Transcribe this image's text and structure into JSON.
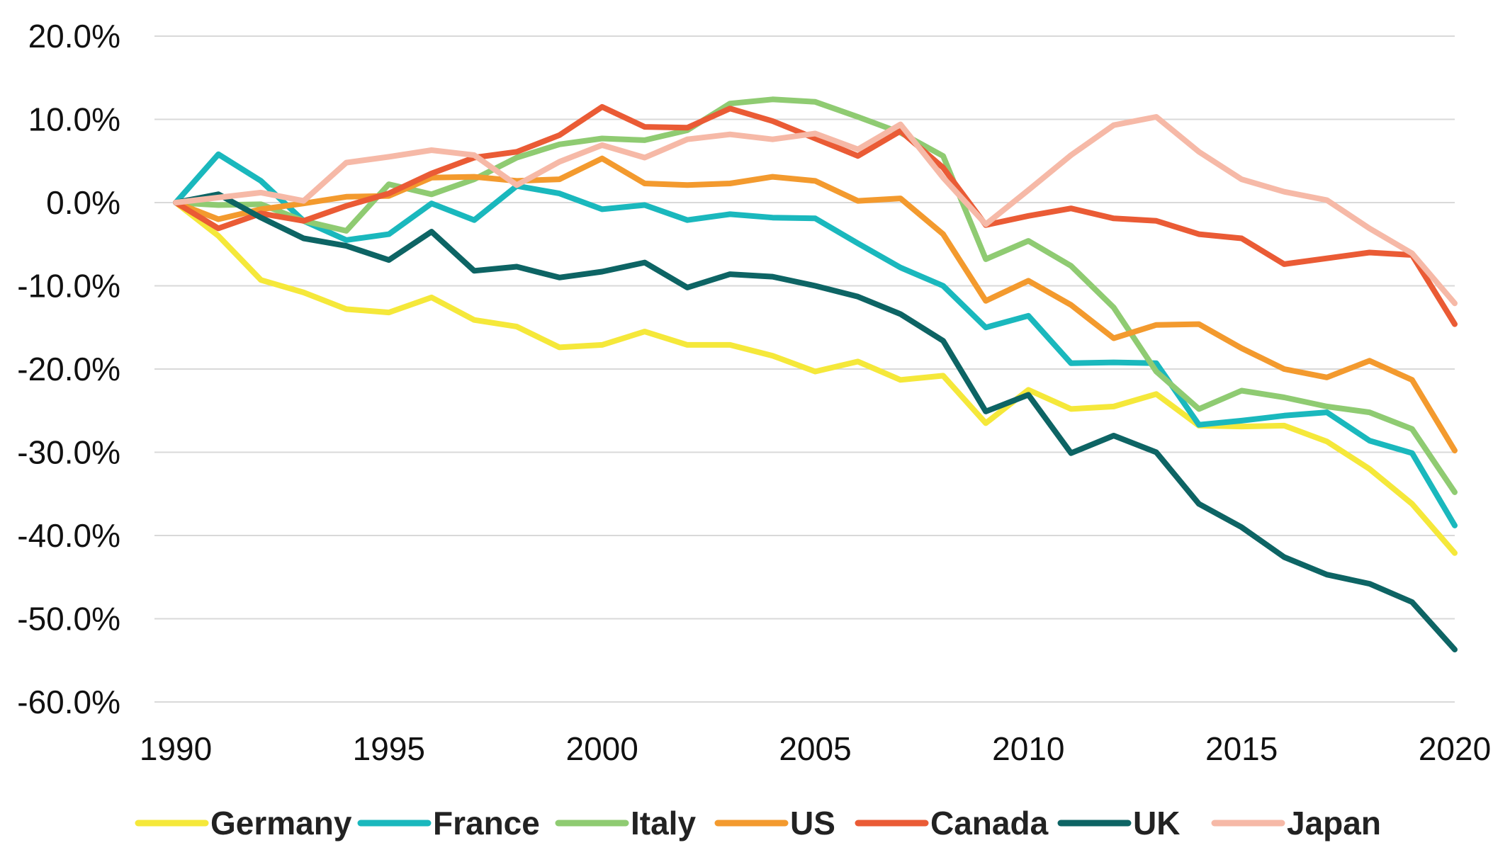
{
  "chart_data": {
    "type": "line",
    "x": [
      1990,
      1991,
      1992,
      1993,
      1994,
      1995,
      1996,
      1997,
      1998,
      1999,
      2000,
      2001,
      2002,
      2003,
      2004,
      2005,
      2006,
      2007,
      2008,
      2009,
      2010,
      2011,
      2012,
      2013,
      2014,
      2015,
      2016,
      2017,
      2018,
      2019,
      2020
    ],
    "xticks": [
      1990,
      1995,
      2000,
      2005,
      2010,
      2015,
      2020
    ],
    "xtick_labels": [
      "1990",
      "1995",
      "2000",
      "2005",
      "2010",
      "2015",
      "2020"
    ],
    "xlim": [
      1990,
      2020
    ],
    "yticks": [
      20,
      10,
      0,
      -10,
      -20,
      -30,
      -40,
      -50,
      -60
    ],
    "ytick_labels": [
      "20.0%",
      "10.0%",
      "0.0%",
      "-10.0%",
      "-20.0%",
      "-30.0%",
      "-40.0%",
      "-50.0%",
      "-60.0%"
    ],
    "ylim": [
      -60,
      20
    ],
    "grid": true,
    "legend_position": "bottom",
    "series": [
      {
        "name": "Germany",
        "color": "#f5e83a",
        "values": [
          0,
          -4,
          -9.3,
          -10.8,
          -12.8,
          -13.2,
          -11.4,
          -14.1,
          -14.9,
          -17.4,
          -17.1,
          -15.5,
          -17.1,
          -17.1,
          -18.4,
          -20.3,
          -19.1,
          -21.3,
          -20.8,
          -26.5,
          -22.5,
          -24.8,
          -24.5,
          -23,
          -26.8,
          -26.9,
          -26.8,
          -28.7,
          -32,
          -36.2,
          -42.1
        ]
      },
      {
        "name": "France",
        "color": "#1ab8bd",
        "values": [
          0,
          5.8,
          2.6,
          -2.2,
          -4.5,
          -3.8,
          -0.1,
          -2.1,
          2,
          1.1,
          -0.8,
          -0.3,
          -2.1,
          -1.4,
          -1.8,
          -1.9,
          -4.9,
          -7.8,
          -10,
          -15,
          -13.6,
          -19.3,
          -19.2,
          -19.3,
          -26.7,
          -26.2,
          -25.6,
          -25.2,
          -28.6,
          -30.1,
          -38.8
        ]
      },
      {
        "name": "Italy",
        "color": "#8fcb72",
        "values": [
          0,
          -0.3,
          -0.2,
          -2.2,
          -3.4,
          2.2,
          1,
          2.8,
          5.4,
          7,
          7.7,
          7.5,
          8.7,
          11.9,
          12.4,
          12.1,
          10.3,
          8.4,
          5.6,
          -6.8,
          -4.6,
          -7.6,
          -12.6,
          -20.3,
          -24.8,
          -22.6,
          -23.4,
          -24.5,
          -25.2,
          -27.2,
          -34.8
        ]
      },
      {
        "name": "US",
        "color": "#f39a2e",
        "values": [
          0,
          -2,
          -0.8,
          -0.1,
          0.7,
          0.8,
          3,
          3.1,
          2.6,
          2.8,
          5.3,
          2.3,
          2.1,
          2.3,
          3.1,
          2.6,
          0.2,
          0.5,
          -3.8,
          -11.8,
          -9.4,
          -12.3,
          -16.3,
          -14.7,
          -14.6,
          -17.5,
          -20,
          -21,
          -19,
          -21.3,
          -29.8
        ]
      },
      {
        "name": "Canada",
        "color": "#ea5b35",
        "values": [
          0,
          -3.1,
          -1.3,
          -2.2,
          -0.4,
          1.1,
          3.5,
          5.4,
          6.1,
          8.1,
          11.5,
          9.1,
          9,
          11.3,
          9.8,
          7.7,
          5.6,
          8.6,
          4.2,
          -2.7,
          -1.6,
          -0.7,
          -1.9,
          -2.2,
          -3.8,
          -4.3,
          -7.4,
          -6.7,
          -6,
          -6.3,
          -14.6
        ]
      },
      {
        "name": "UK",
        "color": "#0d6464",
        "values": [
          0,
          1,
          -1.8,
          -4.3,
          -5.2,
          -6.9,
          -3.5,
          -8.2,
          -7.7,
          -9,
          -8.3,
          -7.2,
          -10.2,
          -8.6,
          -8.9,
          -10,
          -11.3,
          -13.4,
          -16.6,
          -25.1,
          -23.1,
          -30.1,
          -28,
          -30,
          -36.2,
          -39,
          -42.6,
          -44.7,
          -45.8,
          -48,
          -53.7
        ]
      },
      {
        "name": "Japan",
        "color": "#f6b9a7",
        "values": [
          0,
          0.6,
          1.2,
          0.2,
          4.8,
          5.5,
          6.3,
          5.7,
          2.1,
          4.9,
          6.9,
          5.4,
          7.6,
          8.2,
          7.6,
          8.3,
          6.4,
          9.4,
          3,
          -2.6,
          1.5,
          5.7,
          9.3,
          10.3,
          6.1,
          2.8,
          1.3,
          0.3,
          -3.1,
          -6.1,
          -12.1
        ]
      }
    ]
  }
}
